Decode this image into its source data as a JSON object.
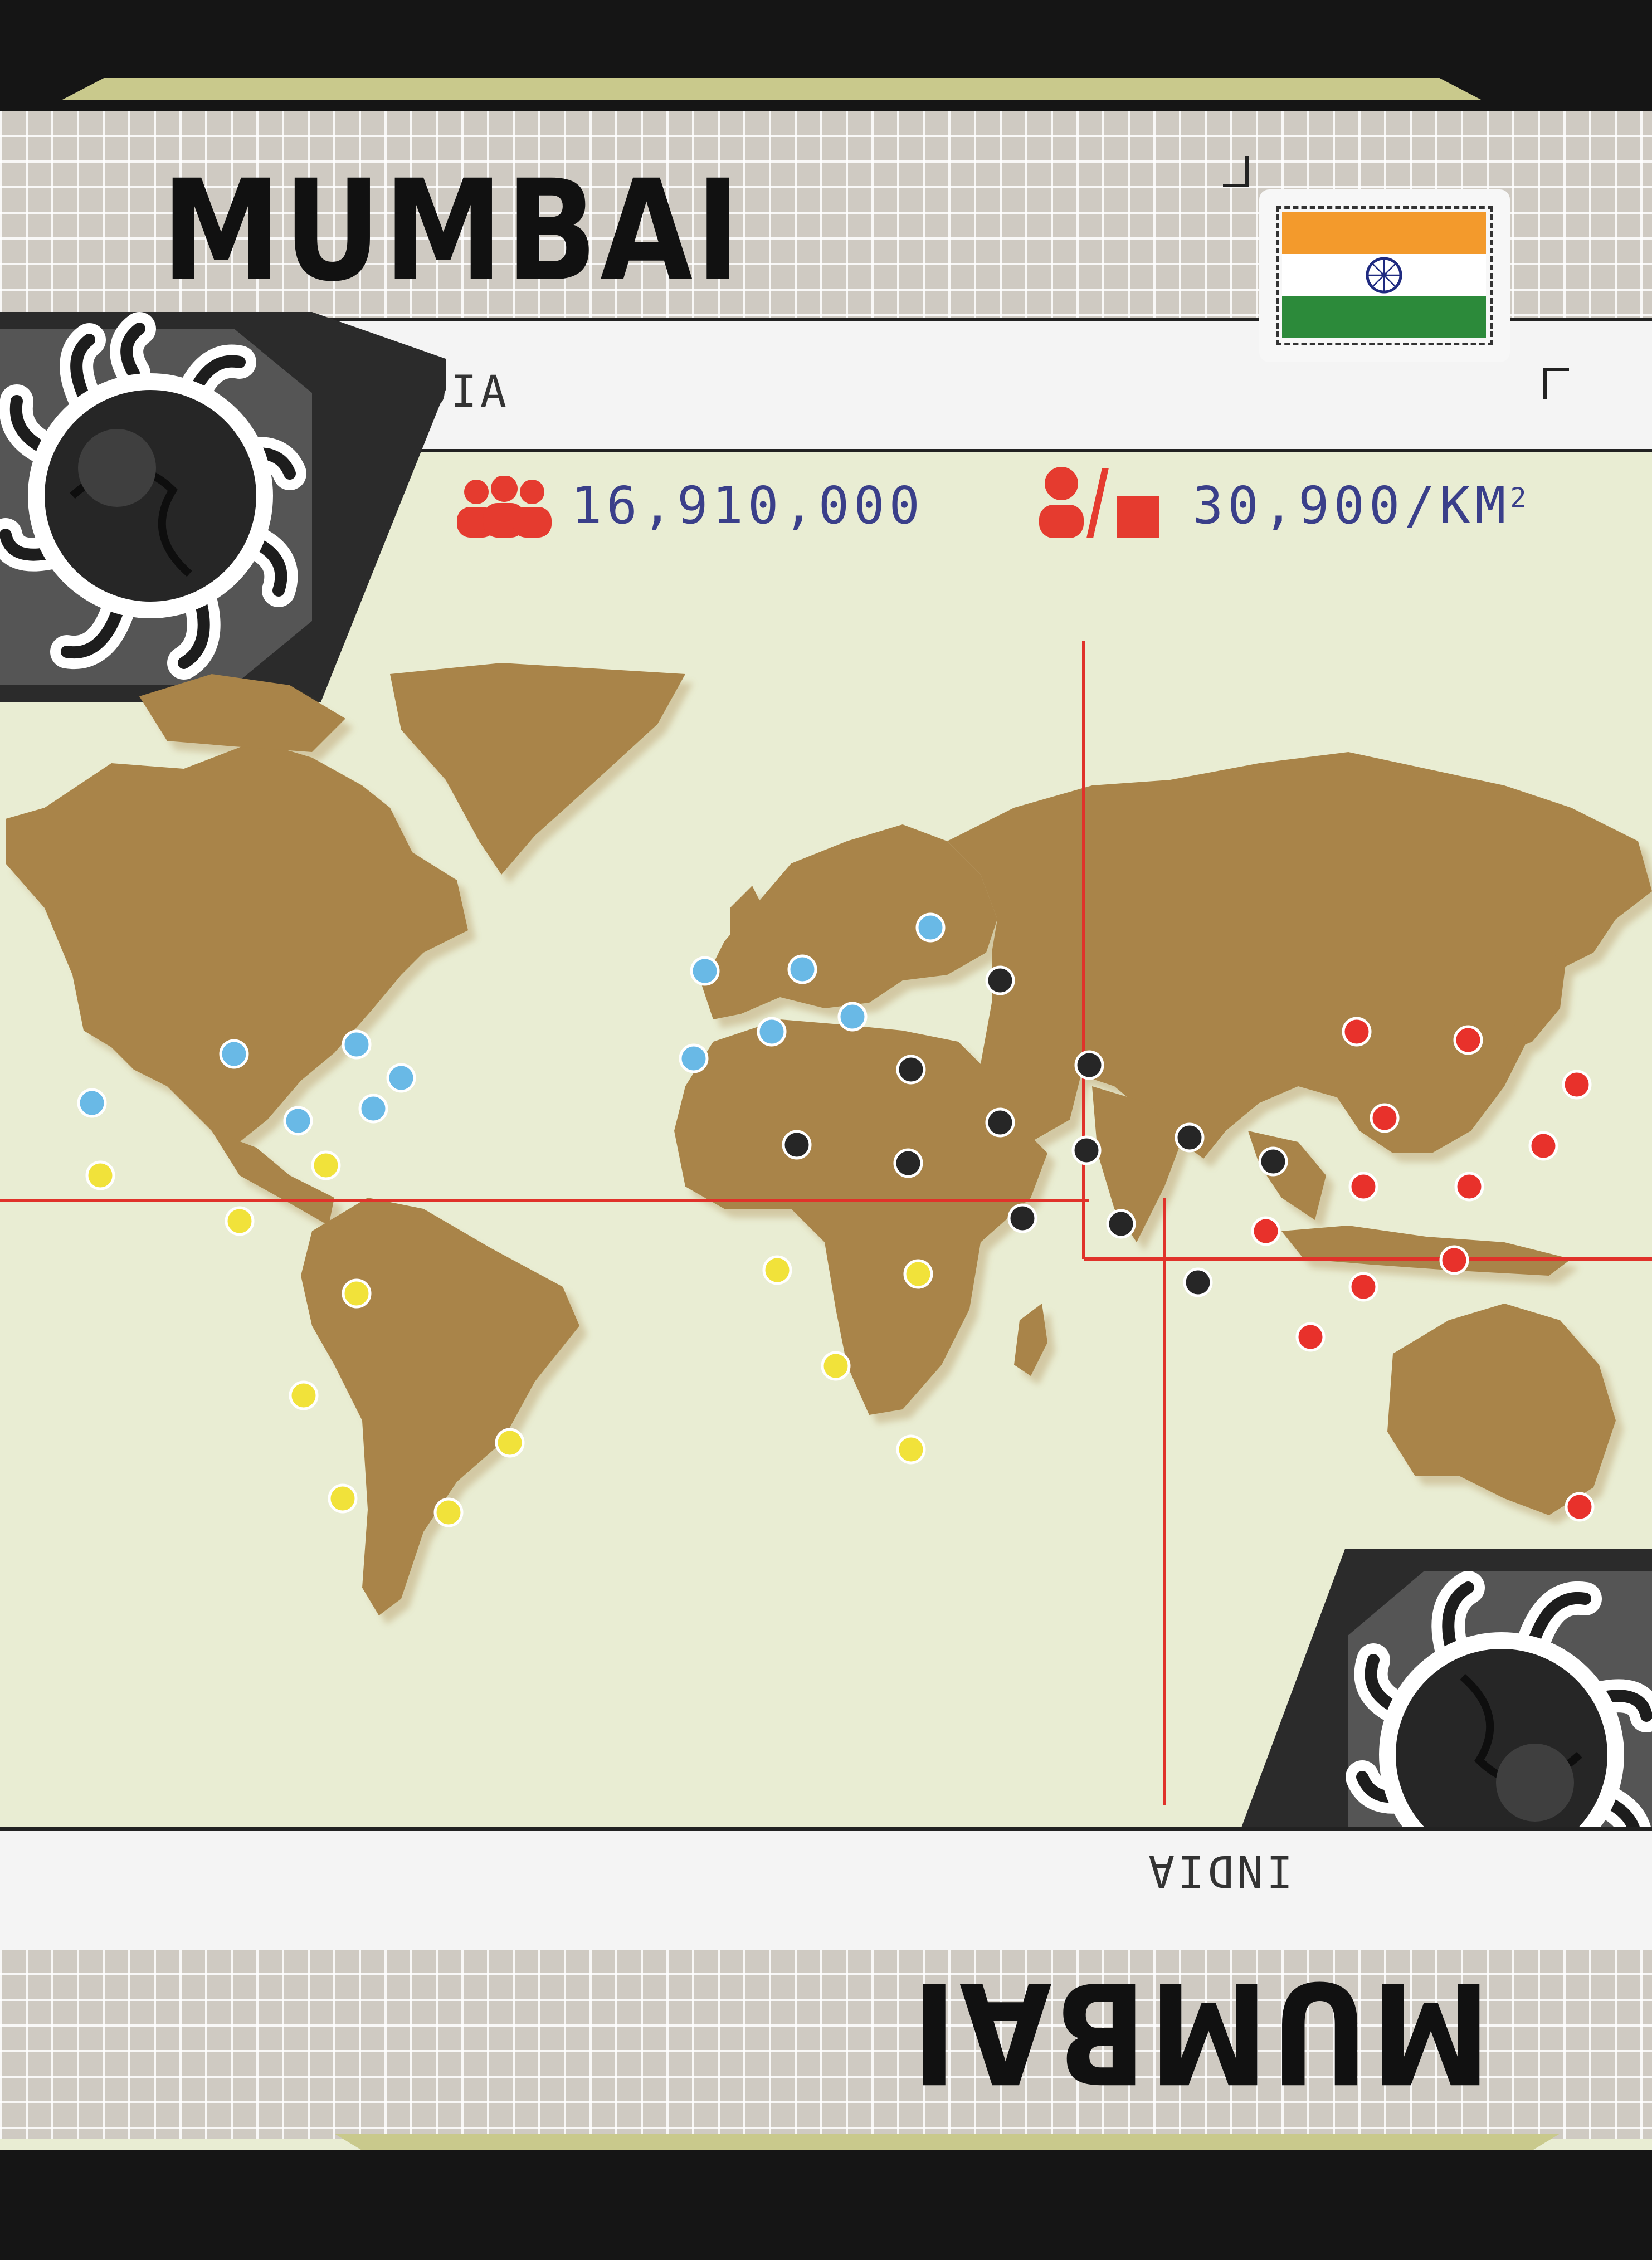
{
  "city": {
    "name": "MUMBAI",
    "country": "INDIA",
    "population": "16,910,000",
    "density": "30,900/KM",
    "density_superscript": "2"
  },
  "flag": {
    "country": "India",
    "colors": {
      "saffron": "#f39a2c",
      "white": "#ffffff",
      "green": "#2c8a3a",
      "chakra": "#1f2a80"
    }
  },
  "icons": {
    "population": "people-group-icon",
    "density": "person-per-area-icon",
    "biohazard": "virus-emblem-icon"
  },
  "colors": {
    "card_background": "#e9edd3",
    "continent": "#a98448",
    "red_line": "#e0322a",
    "stat_icon": "#e53b2f",
    "stat_text": "#3a3f8a",
    "region_blue": "#69b9e6",
    "region_yellow": "#f1e23a",
    "region_black": "#262626",
    "region_red": "#e8312b"
  },
  "map": {
    "city_marker_groups": [
      {
        "region": "blue",
        "count": 12
      },
      {
        "region": "yellow",
        "count": 12
      },
      {
        "region": "black",
        "count": 12
      },
      {
        "region": "red",
        "count": 12
      }
    ]
  }
}
